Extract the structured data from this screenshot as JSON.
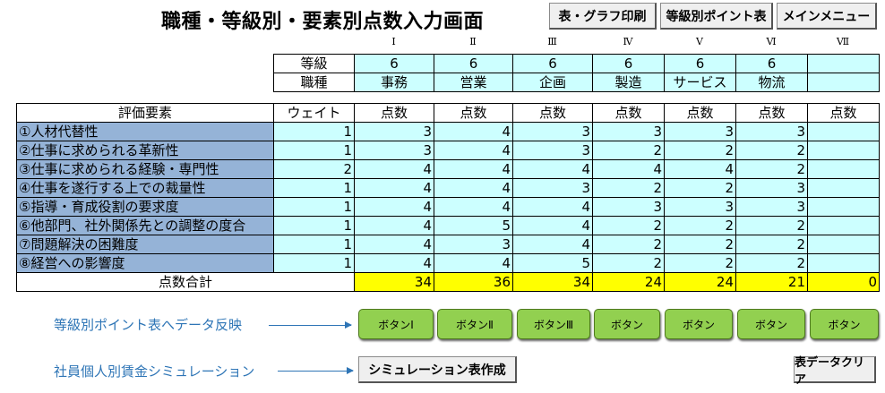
{
  "title": "職種・等級別・要素別点数入力画面",
  "top_buttons": {
    "print": "表・グラフ印刷",
    "grade_points": "等級別ポイント表",
    "main_menu": "メインメニュー"
  },
  "roman": [
    "Ⅰ",
    "Ⅱ",
    "Ⅲ",
    "Ⅳ",
    "Ⅴ",
    "Ⅵ",
    "Ⅶ"
  ],
  "grade_label": "等級",
  "grades": [
    "6",
    "6",
    "6",
    "6",
    "6",
    "6",
    ""
  ],
  "job_label": "職種",
  "jobs": [
    "事務",
    "営業",
    "企画",
    "製造",
    "サービス",
    "物流",
    ""
  ],
  "header": {
    "element": "評価要素",
    "weight": "ウェイト",
    "score": "点数"
  },
  "rows": [
    {
      "label": "①人材代替性",
      "weight": "1",
      "scores": [
        "3",
        "4",
        "3",
        "3",
        "3",
        "3",
        ""
      ]
    },
    {
      "label": "②仕事に求められる革新性",
      "weight": "1",
      "scores": [
        "3",
        "4",
        "3",
        "2",
        "2",
        "2",
        ""
      ]
    },
    {
      "label": "③仕事に求められる経験・専門性",
      "weight": "2",
      "scores": [
        "4",
        "4",
        "4",
        "4",
        "4",
        "2",
        ""
      ]
    },
    {
      "label": "④仕事を遂行する上での裁量性",
      "weight": "1",
      "scores": [
        "4",
        "4",
        "3",
        "2",
        "2",
        "3",
        ""
      ]
    },
    {
      "label": "⑤指導・育成役割の要求度",
      "weight": "1",
      "scores": [
        "4",
        "4",
        "4",
        "3",
        "3",
        "3",
        ""
      ]
    },
    {
      "label": "⑥他部門、社外関係先との調整の度合",
      "weight": "1",
      "scores": [
        "4",
        "5",
        "4",
        "2",
        "2",
        "2",
        ""
      ]
    },
    {
      "label": "⑦問題解決の困難度",
      "weight": "1",
      "scores": [
        "4",
        "3",
        "4",
        "2",
        "2",
        "2",
        ""
      ]
    },
    {
      "label": "⑧経営への影響度",
      "weight": "1",
      "scores": [
        "4",
        "4",
        "5",
        "2",
        "2",
        "2",
        ""
      ]
    }
  ],
  "total_label": "点数合計",
  "totals": [
    "34",
    "36",
    "34",
    "24",
    "24",
    "21",
    "0"
  ],
  "reflect_label": "等級別ポイント表へデータ反映",
  "reflect_buttons": [
    "ボタンⅠ",
    "ボタンⅡ",
    "ボタンⅢ",
    "ボタン",
    "ボタン",
    "ボタン",
    "ボタン"
  ],
  "simulation_label": "社員個人別賃金シミュレーション",
  "simulation_button": "シミュレーション表作成",
  "clear_button": "表データクリア",
  "colors": {
    "cyan": "#ccffff",
    "blue": "#95b3d7",
    "yellow": "#ffff00",
    "green": "#92d050"
  }
}
